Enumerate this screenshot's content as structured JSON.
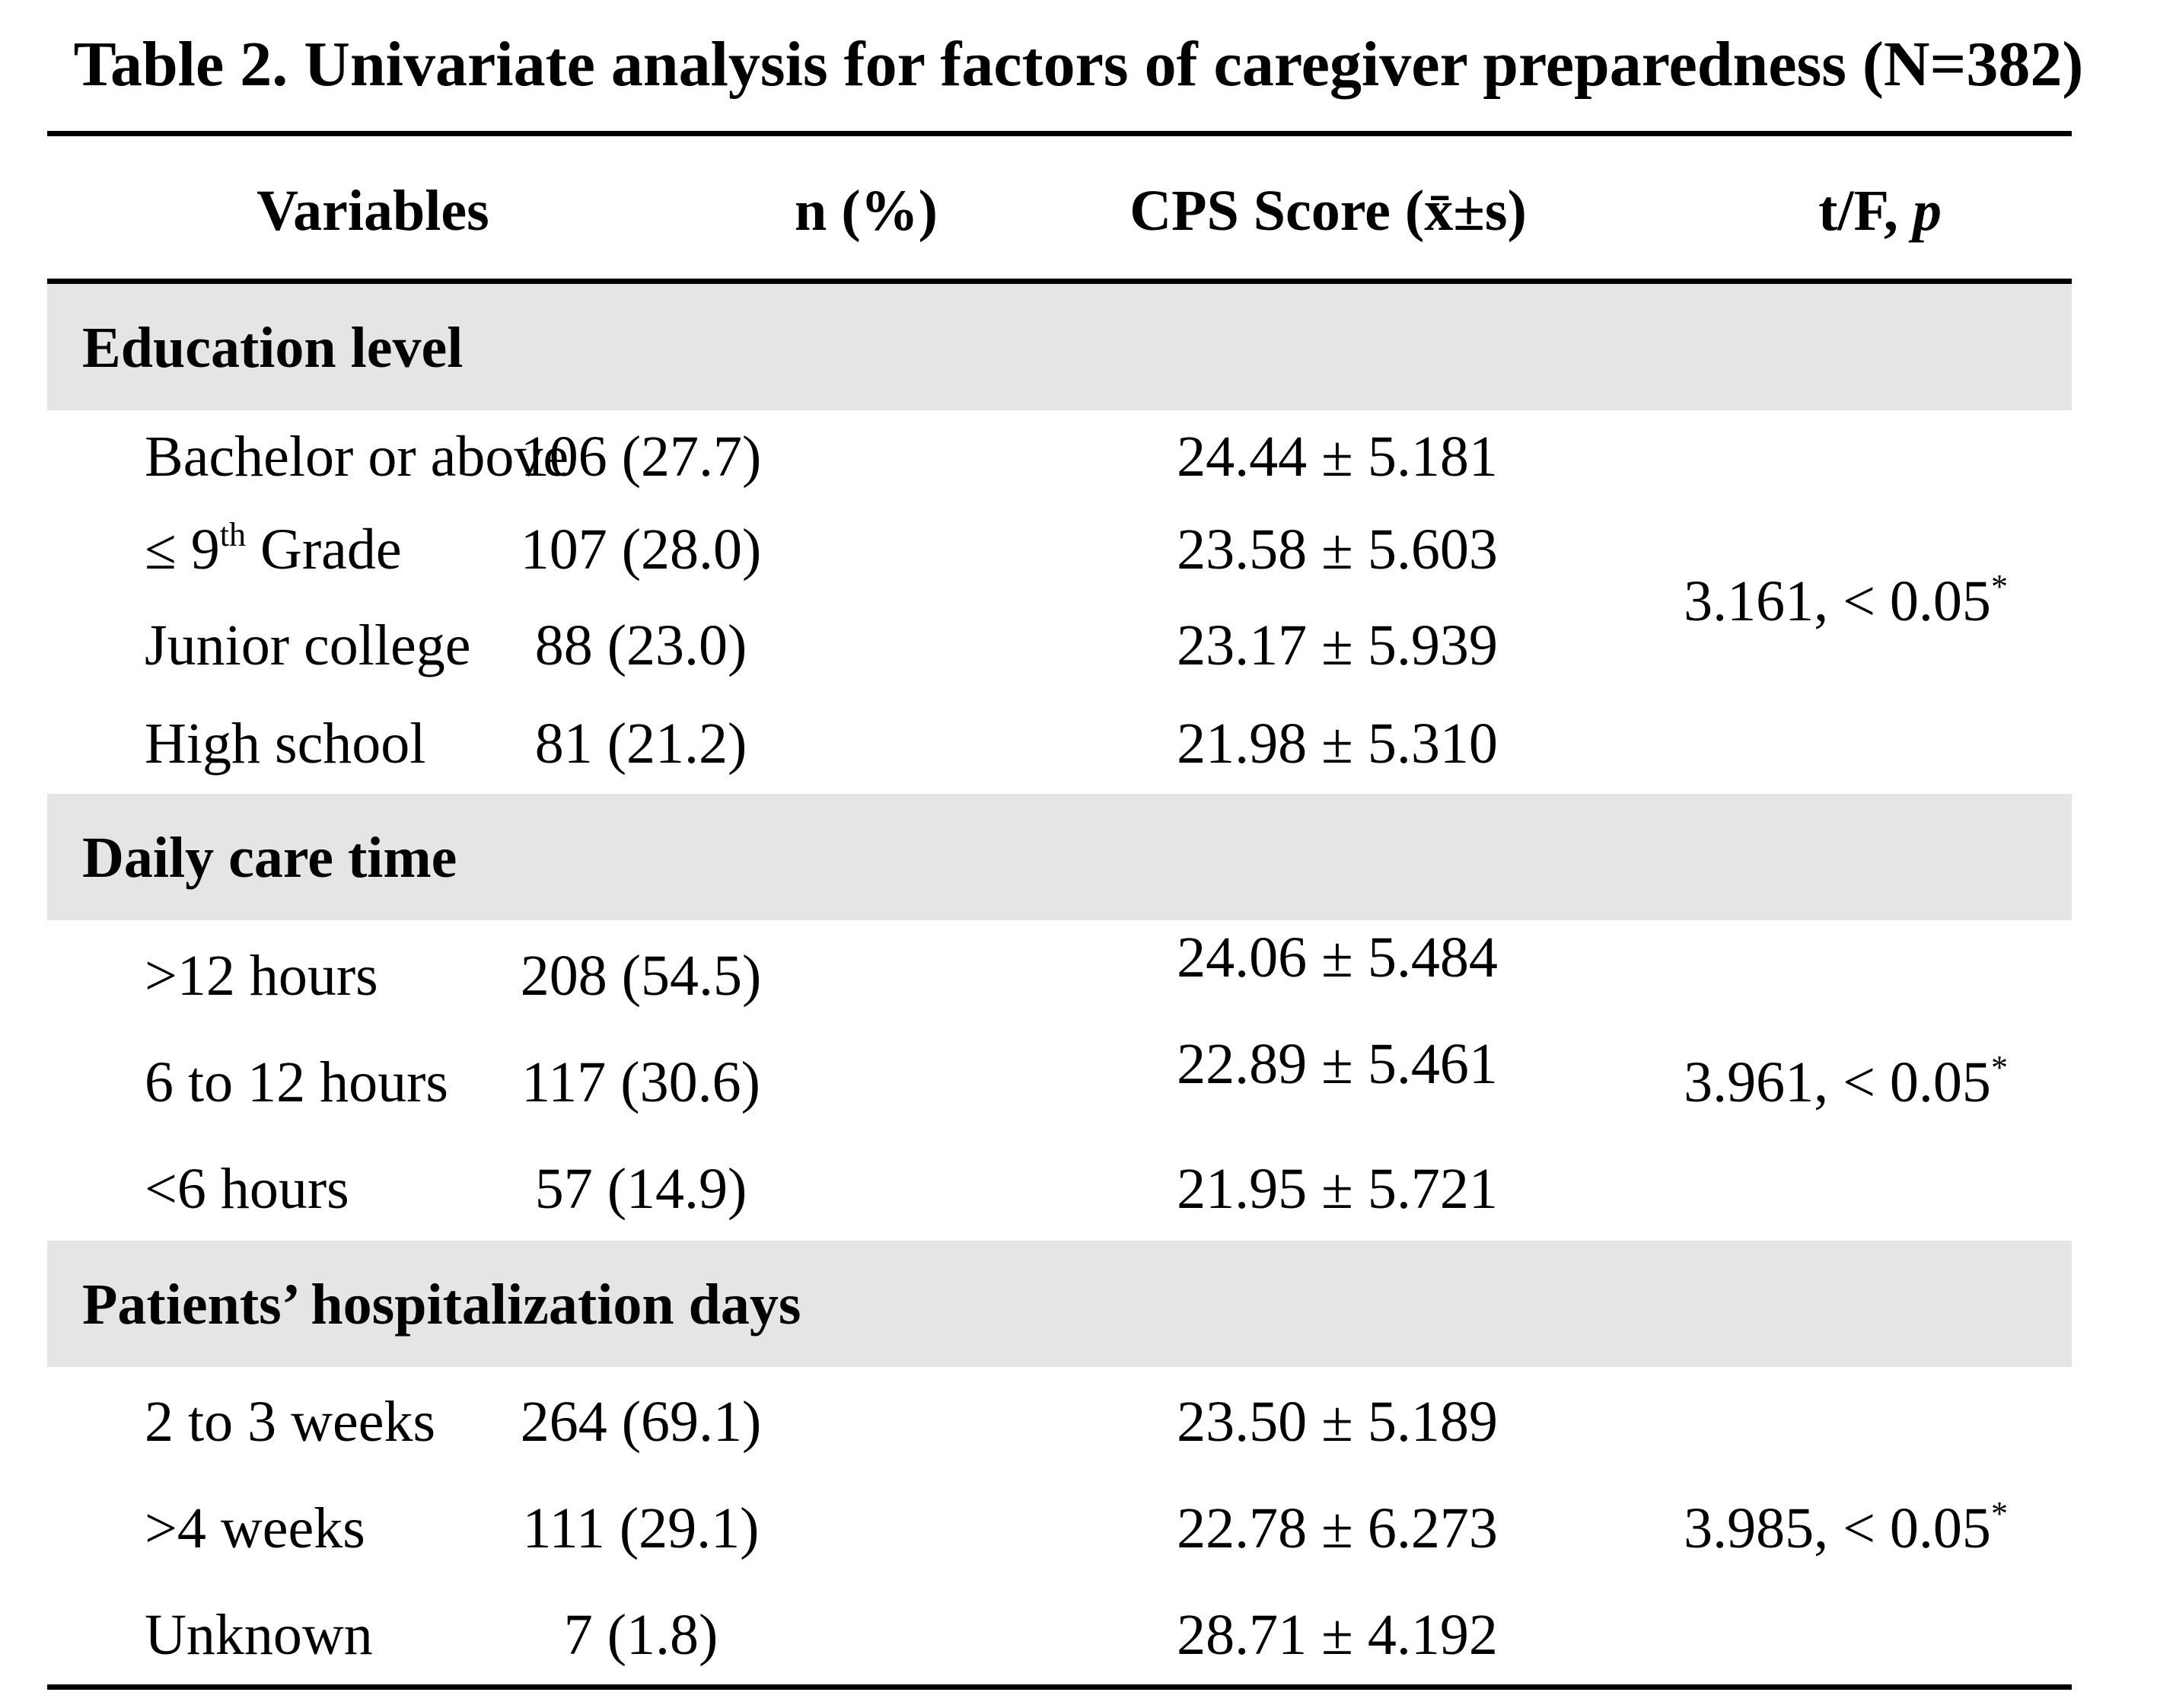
{
  "title": "Table 2. Univariate analysis for factors of caregiver preparedness (N=382)",
  "columns": {
    "variables": "Variables",
    "n": "n (%)",
    "cps": "CPS Score (x̄±s)",
    "stat_prefix": "t/F, ",
    "stat_italic": "p"
  },
  "sections": [
    {
      "label": "Education level",
      "stat": "3.161, < 0.05",
      "stat_mark": "*",
      "rows": [
        {
          "variable": "Bachelor or above",
          "n": "106 (27.7)",
          "cps": "24.44 ± 5.181"
        },
        {
          "variable_pre": "≤ 9",
          "variable_sup": "th",
          "variable_post": " Grade",
          "n": "107 (28.0)",
          "cps": "23.58 ± 5.603"
        },
        {
          "variable": "Junior college",
          "n": "88 (23.0)",
          "cps": "23.17 ± 5.939"
        },
        {
          "variable": "High school",
          "n": "81 (21.2)",
          "cps": "21.98 ± 5.310"
        }
      ]
    },
    {
      "label": "Daily care time",
      "stat": "3.961, < 0.05",
      "stat_mark": "*",
      "rows": [
        {
          "variable": ">12 hours",
          "n": "208 (54.5)",
          "cps": "24.06 ± 5.484"
        },
        {
          "variable": "6 to 12 hours",
          "n": "117 (30.6)",
          "cps": "22.89 ± 5.461"
        },
        {
          "variable": "<6 hours",
          "n": "57 (14.9)",
          "cps": "21.95 ± 5.721"
        }
      ]
    },
    {
      "label": "Patients’ hospitalization days",
      "stat": "3.985, < 0.05",
      "stat_mark": "*",
      "rows": [
        {
          "variable": "2 to 3 weeks",
          "n": "264 (69.1)",
          "cps": "23.50 ± 5.189"
        },
        {
          "variable": ">4 weeks",
          "n": "111 (29.1)",
          "cps": "22.78 ± 6.273"
        },
        {
          "variable": "Unknown",
          "n": "7 (1.8)",
          "cps": "28.71 ± 4.192"
        }
      ]
    }
  ]
}
